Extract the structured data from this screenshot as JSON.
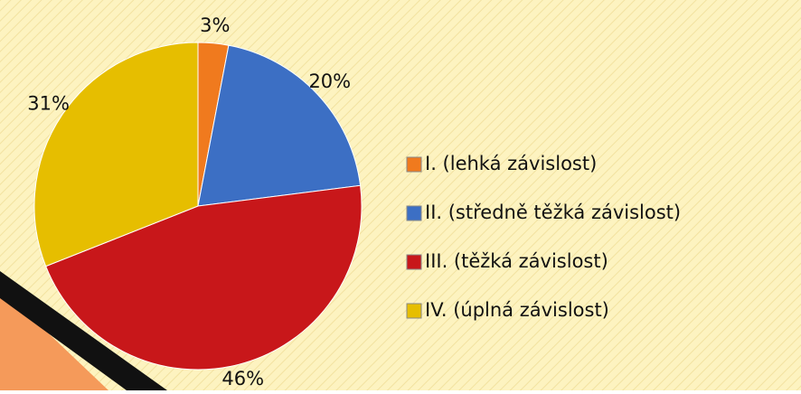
{
  "chart_data": {
    "type": "pie",
    "categories": [
      "I. (lehká závislost)",
      "II. (středně těžká závislost)",
      "III. (těžká závislost)",
      "IV. (úplná závislost)"
    ],
    "values": [
      3,
      20,
      46,
      31
    ],
    "value_labels": [
      "3%",
      "20%",
      "46%",
      "31%"
    ],
    "colors": [
      "#f07a1e",
      "#3c6fc4",
      "#c8171a",
      "#e6be00"
    ],
    "legend": "right"
  }
}
